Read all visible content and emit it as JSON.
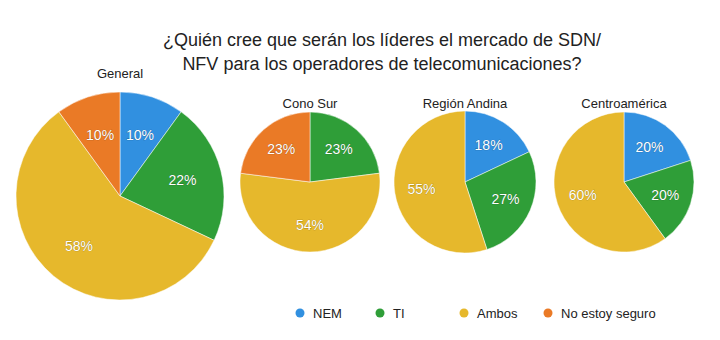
{
  "title": "¿Quién cree que serán los líderes el mercado de SDN/\nNFV para los operadores de telecomunicaciones?",
  "chart_data": [
    {
      "type": "pie",
      "title": "General",
      "categories": [
        "NEM",
        "TI",
        "Ambos",
        "No estoy seguro"
      ],
      "values": [
        10,
        22,
        58,
        10
      ],
      "value_labels": [
        "10%",
        "22%",
        "58%",
        "10%"
      ],
      "colors": [
        "#3190e0",
        "#2f9e38",
        "#e6b82c",
        "#ea7a26"
      ],
      "data_labels": true,
      "legend": "bottom"
    },
    {
      "type": "pie",
      "title": "Cono Sur",
      "categories": [
        "TI",
        "Ambos",
        "No estoy seguro"
      ],
      "values": [
        23,
        54,
        23
      ],
      "value_labels": [
        "23%",
        "54%",
        "23%"
      ],
      "colors": [
        "#2f9e38",
        "#e6b82c",
        "#ea7a26"
      ],
      "data_labels": true
    },
    {
      "type": "pie",
      "title": "Región Andina",
      "categories": [
        "NEM",
        "TI",
        "Ambos"
      ],
      "values": [
        18,
        27,
        55
      ],
      "value_labels": [
        "18%",
        "27%",
        "55%"
      ],
      "colors": [
        "#3190e0",
        "#2f9e38",
        "#e6b82c"
      ],
      "data_labels": true
    },
    {
      "type": "pie",
      "title": "Centroamérica",
      "categories": [
        "NEM",
        "TI",
        "Ambos"
      ],
      "values": [
        20,
        20,
        60
      ],
      "value_labels": [
        "20%",
        "20%",
        "60%"
      ],
      "colors": [
        "#3190e0",
        "#2f9e38",
        "#e6b82c"
      ],
      "data_labels": true
    }
  ]
}
